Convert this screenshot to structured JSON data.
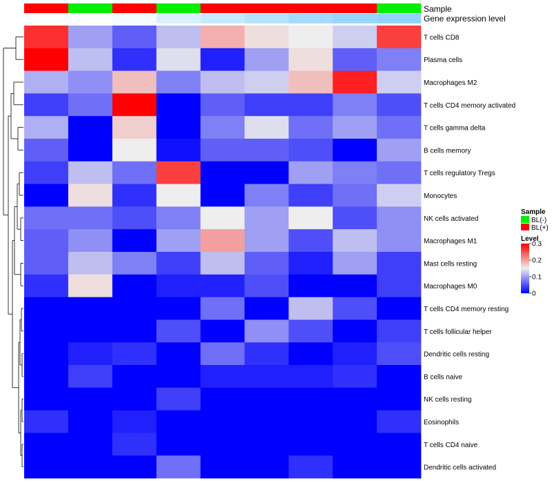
{
  "chart_data": {
    "type": "heatmap",
    "title": "",
    "xlabel": "",
    "ylabel": "",
    "value_range": [
      0,
      0.3
    ],
    "colors": {
      "low": "#0000ff",
      "mid": "#eeeeee",
      "high": "#ff0000"
    },
    "annotation_tracks": {
      "sample_label": "Sample",
      "gene_label": "Gene expression level",
      "sample_values": [
        "BL(+)",
        "BL(-)",
        "BL(+)",
        "BL(-)",
        "BL(+)",
        "BL(+)",
        "BL(+)",
        "BL(+)",
        "BL(-)"
      ],
      "gene_levels": [
        0.02,
        0.05,
        0.08,
        0.3,
        0.45,
        0.6,
        0.75,
        0.85,
        0.9
      ]
    },
    "rows": [
      "T cells CD8",
      "Plasma cells",
      "Macrophages M2",
      "T cells CD4 memory activated",
      "T cells gamma delta",
      "B cells memory",
      "T cells regulatory  Tregs",
      "Monocytes",
      "NK cells activated",
      "Macrophages M1",
      "Mast cells resting",
      "Macrophages M0",
      "T cells CD4 memory resting",
      "T cells follicular helper",
      "Dendritic cells resting",
      "B cells naive",
      "NK cells resting",
      "Eosinophils",
      "T cells CD4 naive",
      "Dendritic cells activated"
    ],
    "values": [
      [
        0.27,
        0.1,
        0.06,
        0.12,
        0.19,
        0.16,
        0.15,
        0.13,
        0.26
      ],
      [
        0.3,
        0.12,
        0.03,
        0.14,
        0.02,
        0.1,
        0.16,
        0.06,
        0.08
      ],
      [
        0.11,
        0.09,
        0.18,
        0.08,
        0.12,
        0.13,
        0.18,
        0.28,
        0.13
      ],
      [
        0.04,
        0.07,
        0.3,
        0.0,
        0.06,
        0.04,
        0.04,
        0.08,
        0.05
      ],
      [
        0.11,
        0.0,
        0.17,
        0.0,
        0.08,
        0.14,
        0.07,
        0.1,
        0.07
      ],
      [
        0.06,
        0.0,
        0.15,
        0.01,
        0.06,
        0.06,
        0.05,
        0.0,
        0.1
      ],
      [
        0.04,
        0.12,
        0.07,
        0.26,
        0.0,
        0.0,
        0.1,
        0.08,
        0.07
      ],
      [
        0.0,
        0.16,
        0.03,
        0.15,
        0.0,
        0.08,
        0.04,
        0.07,
        0.13
      ],
      [
        0.07,
        0.07,
        0.05,
        0.08,
        0.15,
        0.1,
        0.15,
        0.05,
        0.09
      ],
      [
        0.06,
        0.09,
        0.0,
        0.1,
        0.2,
        0.1,
        0.05,
        0.12,
        0.09
      ],
      [
        0.06,
        0.12,
        0.08,
        0.04,
        0.12,
        0.06,
        0.02,
        0.1,
        0.04
      ],
      [
        0.03,
        0.16,
        0.0,
        0.02,
        0.02,
        0.05,
        0.0,
        0.0,
        0.04
      ],
      [
        0.0,
        0.0,
        0.0,
        0.0,
        0.07,
        0.0,
        0.12,
        0.05,
        0.0
      ],
      [
        0.0,
        0.0,
        0.0,
        0.05,
        0.0,
        0.09,
        0.05,
        0.0,
        0.04
      ],
      [
        0.0,
        0.02,
        0.03,
        0.0,
        0.07,
        0.03,
        0.0,
        0.02,
        0.05
      ],
      [
        0.0,
        0.04,
        0.0,
        0.0,
        0.02,
        0.02,
        0.02,
        0.03,
        0.0
      ],
      [
        0.0,
        0.0,
        0.0,
        0.04,
        0.0,
        0.0,
        0.0,
        0.0,
        0.0
      ],
      [
        0.03,
        0.0,
        0.02,
        0.0,
        0.0,
        0.0,
        0.0,
        0.0,
        0.03
      ],
      [
        0.0,
        0.0,
        0.03,
        0.0,
        0.0,
        0.0,
        0.0,
        0.0,
        0.0
      ],
      [
        0.0,
        0.0,
        0.0,
        0.07,
        0.0,
        0.0,
        0.03,
        0.0,
        0.0
      ]
    ],
    "legend": {
      "placement": "right",
      "sample_title": "Sample",
      "sample_entries": [
        {
          "label": "BL(-)",
          "color": "#00ee00"
        },
        {
          "label": "BL(+)",
          "color": "#ff0000"
        }
      ],
      "level_title": "Level",
      "level_ticks": [
        {
          "value": 0.3,
          "label": "0.3"
        },
        {
          "value": 0.2,
          "label": "0.2"
        },
        {
          "value": 0.1,
          "label": "0.1"
        },
        {
          "value": 0.0,
          "label": "0"
        }
      ]
    },
    "gene_track_color": "#87cefa",
    "row_dendrogram": true
  }
}
